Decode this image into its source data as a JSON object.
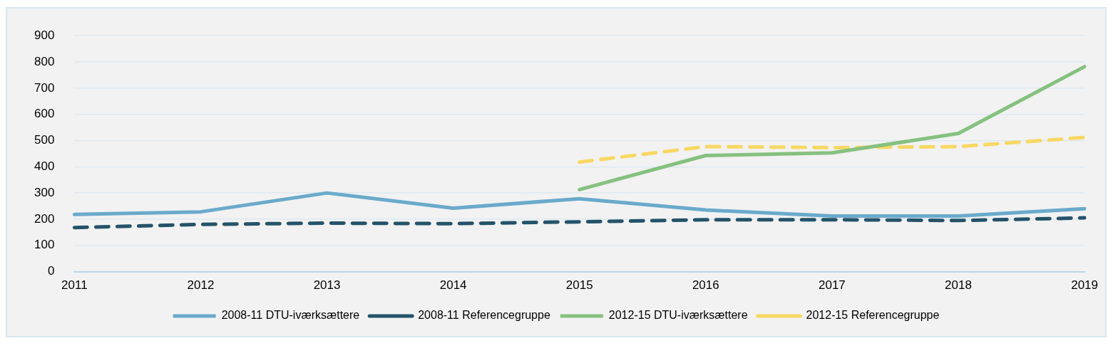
{
  "chart_data": {
    "type": "line",
    "categories": [
      "2011",
      "2012",
      "2013",
      "2014",
      "2015",
      "2016",
      "2017",
      "2018",
      "2019"
    ],
    "series": [
      {
        "name": "2008-11 DTU-iværksættere",
        "color": "#6aaacb",
        "line_style": "solid",
        "values": [
          218,
          228,
          300,
          242,
          278,
          235,
          212,
          212,
          240
        ]
      },
      {
        "name": "2008-11 Referencegruppe",
        "color": "#245369",
        "line_style": "dashed",
        "values": [
          168,
          180,
          185,
          183,
          190,
          198,
          198,
          195,
          205
        ]
      },
      {
        "name": "2012-15 DTU-iværksættere",
        "color": "#86c17f",
        "line_style": "solid",
        "values": [
          null,
          null,
          null,
          null,
          313,
          443,
          453,
          527,
          782
        ]
      },
      {
        "name": "2012-15 Referencegruppe",
        "color": "#f8d864",
        "line_style": "dashed",
        "values": [
          null,
          null,
          null,
          null,
          418,
          477,
          473,
          477,
          512
        ]
      }
    ],
    "ylim": [
      0,
      900
    ],
    "yticks": [
      0,
      100,
      200,
      300,
      400,
      500,
      600,
      700,
      800,
      900
    ],
    "grid": "y",
    "legend": "bottom",
    "marker": "none"
  }
}
